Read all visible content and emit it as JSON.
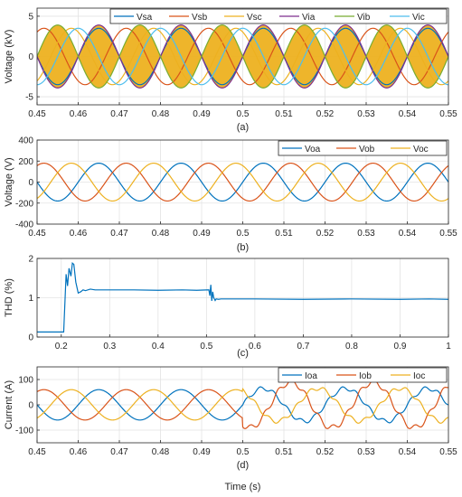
{
  "chart_data": [
    {
      "type": "line",
      "caption": "(a)",
      "ylabel": "Voltage (kV)",
      "xlim": [
        0.45,
        0.55
      ],
      "ylim": [
        -6,
        6
      ],
      "xticks": [
        "0.45",
        "0.46",
        "0.47",
        "0.48",
        "0.49",
        "0.5",
        "0.51",
        "0.52",
        "0.53",
        "0.54",
        "0.55"
      ],
      "yticks": [
        "-5",
        "0",
        "5"
      ],
      "grid": true,
      "legend_position": "top-right",
      "frequency_hz": 50,
      "series": [
        {
          "name": "Vsa",
          "color": "#0072BD",
          "amplitude": 3.5,
          "phase_deg": 0,
          "shape": "sine"
        },
        {
          "name": "Vsb",
          "color": "#D95319",
          "amplitude": 3.5,
          "phase_deg": -120,
          "shape": "sine"
        },
        {
          "name": "Vsc",
          "color": "#EDB120",
          "amplitude": 3.5,
          "phase_deg": 120,
          "shape": "sine"
        },
        {
          "name": "Via",
          "color": "#7E2F8E",
          "amplitude": 3.9,
          "phase_deg": 0,
          "shape": "sine"
        },
        {
          "name": "Vib",
          "color": "#77AC30",
          "amplitude": 3.9,
          "phase_deg": 180,
          "shape": "sine"
        },
        {
          "name": "Vic",
          "color": "#4DBEEE",
          "amplitude": 3.5,
          "phase_deg": 90,
          "shape": "sine"
        }
      ],
      "fill_between": {
        "series": [
          "Via",
          "Vib"
        ],
        "color": "#EDB120"
      }
    },
    {
      "type": "line",
      "caption": "(b)",
      "ylabel": "Voltage (V)",
      "xlim": [
        0.45,
        0.55
      ],
      "ylim": [
        -400,
        400
      ],
      "xticks": [
        "0.45",
        "0.46",
        "0.47",
        "0.48",
        "0.49",
        "0.5",
        "0.51",
        "0.52",
        "0.53",
        "0.54",
        "0.55"
      ],
      "yticks": [
        "-400",
        "-200",
        "0",
        "200",
        "400"
      ],
      "grid": true,
      "legend_position": "top-right",
      "frequency_hz": 50,
      "series": [
        {
          "name": "Voa",
          "color": "#0072BD",
          "amplitude": 180,
          "phase_deg": 0,
          "shape": "sine"
        },
        {
          "name": "Vob",
          "color": "#D95319",
          "amplitude": 180,
          "phase_deg": -120,
          "shape": "sine"
        },
        {
          "name": "Voc",
          "color": "#EDB120",
          "amplitude": 180,
          "phase_deg": 120,
          "shape": "sine"
        }
      ]
    },
    {
      "type": "line",
      "caption": "(c)",
      "ylabel": "THD (%)",
      "xlim": [
        0.15,
        1.0
      ],
      "ylim": [
        0,
        2
      ],
      "xticks": [
        "0.2",
        "0.3",
        "0.4",
        "0.5",
        "0.6",
        "0.7",
        "0.8",
        "0.9",
        "1"
      ],
      "yticks": [
        "0",
        "1",
        "2"
      ],
      "grid": true,
      "series": [
        {
          "name": "THD",
          "color": "#0072BD",
          "x": [
            0.15,
            0.205,
            0.21,
            0.213,
            0.216,
            0.22,
            0.223,
            0.226,
            0.23,
            0.235,
            0.24,
            0.245,
            0.25,
            0.26,
            0.27,
            0.3,
            0.35,
            0.4,
            0.45,
            0.48,
            0.505,
            0.507,
            0.509,
            0.511,
            0.513,
            0.515,
            0.518,
            0.52,
            0.525,
            0.53,
            0.6,
            0.7,
            0.8,
            0.9,
            0.96,
            1.0
          ],
          "y": [
            0.13,
            0.13,
            1.6,
            1.3,
            1.75,
            1.55,
            1.88,
            1.85,
            1.4,
            1.12,
            1.15,
            1.2,
            1.18,
            1.22,
            1.2,
            1.2,
            1.2,
            1.19,
            1.2,
            1.19,
            1.2,
            1.05,
            1.33,
            0.92,
            1.15,
            1.0,
            0.93,
            0.97,
            0.96,
            0.97,
            0.97,
            0.96,
            0.97,
            0.96,
            0.97,
            0.96
          ]
        }
      ]
    },
    {
      "type": "line",
      "caption": "(d)",
      "ylabel": "Current (A)",
      "xlabel": "Time (s)",
      "xlim": [
        0.45,
        0.55
      ],
      "ylim": [
        -150,
        150
      ],
      "xticks": [
        "0.45",
        "0.46",
        "0.47",
        "0.48",
        "0.49",
        "0.5",
        "0.51",
        "0.52",
        "0.53",
        "0.54",
        "0.55"
      ],
      "yticks": [
        "-100",
        "0",
        "100"
      ],
      "grid": true,
      "legend_position": "top-right",
      "frequency_hz": 50,
      "series": [
        {
          "name": "Ioa",
          "color": "#0072BD",
          "amplitude_before": 60,
          "amplitude_after": 65,
          "phase_deg": 0,
          "shape": "stepped-sine"
        },
        {
          "name": "Iob",
          "color": "#D95319",
          "amplitude_before": 60,
          "amplitude_after": 90,
          "phase_deg": -120,
          "shape": "stepped-sine"
        },
        {
          "name": "Ioc",
          "color": "#EDB120",
          "amplitude_before": 60,
          "amplitude_after": 65,
          "phase_deg": 120,
          "shape": "stepped-sine"
        }
      ],
      "change_time": 0.5
    }
  ]
}
